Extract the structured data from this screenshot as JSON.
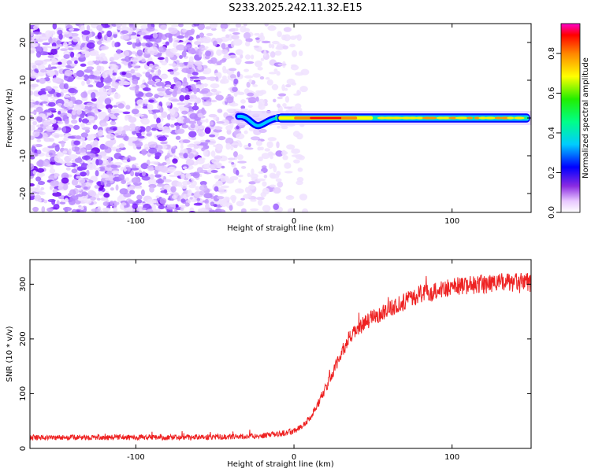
{
  "title": "S233.2025.242.11.32.E15",
  "chart_data": [
    {
      "type": "heatmap",
      "name": "spectrogram",
      "xlabel": "Height of straight line (km)",
      "ylabel": "Frequency (Hz)",
      "xlim": [
        -167,
        150
      ],
      "ylim": [
        -25,
        25
      ],
      "xticks": [
        -100,
        0,
        100
      ],
      "xtick_labels": [
        "-100",
        "0",
        "100"
      ],
      "yticks": [
        -20,
        -10,
        0,
        10,
        20
      ],
      "ytick_labels": [
        "-20",
        "-10",
        "0",
        "10",
        "20"
      ],
      "noise_region_x": [
        -167,
        -5
      ],
      "signal_band": {
        "x_start": -35,
        "x_end": 150,
        "frequency": 0,
        "dip": {
          "x": -22,
          "frequency": -2
        },
        "peak_amplitude_x": 25
      },
      "colorbar": {
        "label": "Normalized spectral amplitude",
        "ticks": [
          0.0,
          0.2,
          0.4,
          0.6,
          0.8
        ],
        "tick_labels": [
          "0.0",
          "0.2",
          "0.4",
          "0.6",
          "0.8"
        ],
        "range": [
          0,
          0.95
        ]
      }
    },
    {
      "type": "line",
      "name": "snr",
      "xlabel": "Height of straight line (km)",
      "ylabel": "SNR (10 * v/v)",
      "xlim": [
        -167,
        150
      ],
      "ylim": [
        0,
        345
      ],
      "xticks": [
        -100,
        0,
        100
      ],
      "xtick_labels": [
        "-100",
        "0",
        "100"
      ],
      "yticks": [
        0,
        100,
        200,
        300
      ],
      "ytick_labels": [
        "0",
        "100",
        "200",
        "300"
      ],
      "series": [
        {
          "name": "SNR",
          "color": "#ee2222",
          "x": [
            -167,
            -140,
            -120,
            -100,
            -80,
            -60,
            -40,
            -20,
            -10,
            0,
            5,
            10,
            15,
            20,
            25,
            30,
            35,
            40,
            50,
            60,
            70,
            80,
            90,
            100,
            110,
            120,
            130,
            140,
            150
          ],
          "values": [
            20,
            20,
            20,
            20,
            20,
            21,
            21,
            23,
            26,
            32,
            40,
            55,
            80,
            110,
            140,
            175,
            200,
            218,
            240,
            255,
            268,
            282,
            288,
            295,
            298,
            300,
            302,
            303,
            303
          ]
        }
      ]
    }
  ],
  "colors": {
    "snr_line": "#ee2222",
    "noise": "#a070ff"
  }
}
